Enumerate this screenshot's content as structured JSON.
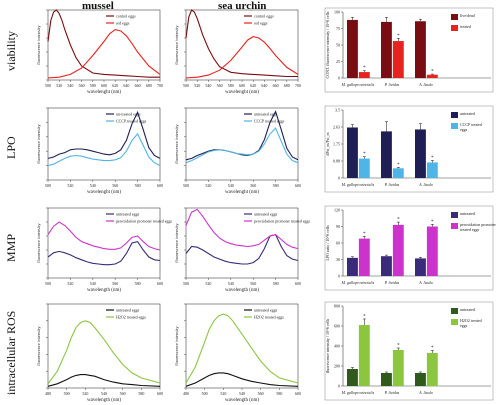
{
  "columns": [
    "mussel",
    "sea urchin"
  ],
  "rows": [
    "viability",
    "LPO",
    "MMP",
    "intracellular ROS"
  ],
  "colors": {
    "dark_red": "#7a0d12",
    "red": "#e8231e",
    "navy": "#1f1f55",
    "cyan": "#4fb4e6",
    "indigo": "#3a2a7a",
    "magenta": "#cc33cc",
    "dkgreen": "#2f5a1c",
    "ltgreen": "#8cc63f"
  },
  "chart_data": [
    {
      "type": "line",
      "ylabel": "fluorescence intensity",
      "xlabel": "wavelenght (nm)",
      "x_ticks": [
        "500",
        "520",
        "540",
        "560",
        "580",
        "600",
        "620",
        "640",
        "660",
        "680",
        "700"
      ],
      "series": [
        {
          "name": "control eggs",
          "color": "#7a0d12",
          "x": [
            500,
            505,
            510,
            515,
            520,
            525,
            530,
            540,
            550,
            560,
            580,
            600,
            620,
            640,
            660,
            680,
            700
          ],
          "y": [
            0.55,
            0.85,
            0.97,
            1.0,
            0.95,
            0.85,
            0.72,
            0.5,
            0.32,
            0.2,
            0.1,
            0.08,
            0.07,
            0.06,
            0.05,
            0.04,
            0.04
          ]
        },
        {
          "name": "red eggs",
          "color": "#e8231e",
          "x": [
            500,
            520,
            540,
            560,
            580,
            600,
            610,
            620,
            630,
            640,
            650,
            660,
            680,
            700
          ],
          "y": [
            0.03,
            0.04,
            0.08,
            0.17,
            0.35,
            0.55,
            0.66,
            0.72,
            0.7,
            0.63,
            0.52,
            0.4,
            0.2,
            0.08
          ]
        }
      ]
    },
    {
      "type": "line",
      "ylabel": "fluorescence intensity",
      "xlabel": "wavelenght (nm)",
      "x_ticks": [
        "500",
        "520",
        "540",
        "560",
        "580",
        "600",
        "620",
        "640",
        "660",
        "680",
        "700"
      ],
      "series": [
        {
          "name": "control eggs",
          "color": "#7a0d12",
          "x": [
            500,
            505,
            510,
            515,
            520,
            525,
            530,
            540,
            550,
            560,
            580,
            600,
            620,
            640,
            660,
            680,
            700
          ],
          "y": [
            0.6,
            0.9,
            1.0,
            0.97,
            0.88,
            0.76,
            0.64,
            0.45,
            0.3,
            0.19,
            0.11,
            0.09,
            0.08,
            0.07,
            0.06,
            0.05,
            0.05
          ]
        },
        {
          "name": "red eggs",
          "color": "#e8231e",
          "x": [
            500,
            520,
            540,
            560,
            580,
            600,
            610,
            620,
            630,
            640,
            650,
            660,
            680,
            700
          ],
          "y": [
            0.03,
            0.04,
            0.07,
            0.14,
            0.28,
            0.47,
            0.57,
            0.62,
            0.6,
            0.54,
            0.45,
            0.35,
            0.18,
            0.08
          ]
        }
      ]
    },
    {
      "type": "bar",
      "ylabel": "CONT. fluorescence intensity / 10^6 cells",
      "categories": [
        "M. galloprovincialis",
        "P. lividus",
        "A. lixula"
      ],
      "series": [
        {
          "name": "live/dead eggs",
          "color": "#7a0d12",
          "values": [
            88,
            85,
            86
          ],
          "errors": [
            4,
            7,
            3
          ]
        },
        {
          "name": "treated eggs",
          "color": "#e8231e",
          "values": [
            9,
            56,
            5
          ],
          "errors": [
            2,
            4,
            1
          ]
        }
      ],
      "ylim": [
        0,
        100
      ],
      "sig": [
        "*",
        "*",
        "*"
      ]
    },
    {
      "type": "line",
      "ylabel": "fluorescence intensity",
      "xlabel": "wavelenght (nm)",
      "x_ticks": [
        "500",
        "520",
        "540",
        "560",
        "580",
        "600"
      ],
      "series": [
        {
          "name": "un-treated eggs",
          "color": "#1f1f55",
          "x": [
            500,
            505,
            510,
            515,
            520,
            525,
            530,
            535,
            540,
            545,
            550,
            555,
            560,
            565,
            570,
            575,
            580,
            585,
            590,
            595,
            600
          ],
          "y": [
            0.3,
            0.32,
            0.36,
            0.38,
            0.42,
            0.43,
            0.43,
            0.42,
            0.4,
            0.38,
            0.36,
            0.35,
            0.37,
            0.42,
            0.55,
            0.78,
            0.94,
            0.7,
            0.45,
            0.34,
            0.3
          ]
        },
        {
          "name": "CCCP treated eggs",
          "color": "#4fb4e6",
          "x": [
            500,
            505,
            510,
            515,
            520,
            525,
            530,
            535,
            540,
            545,
            550,
            555,
            560,
            565,
            570,
            575,
            580,
            585,
            590,
            595,
            600
          ],
          "y": [
            0.2,
            0.22,
            0.26,
            0.3,
            0.33,
            0.34,
            0.33,
            0.31,
            0.29,
            0.28,
            0.27,
            0.27,
            0.28,
            0.31,
            0.4,
            0.55,
            0.64,
            0.48,
            0.32,
            0.24,
            0.2
          ]
        }
      ]
    },
    {
      "type": "line",
      "ylabel": "fluorescence intensity",
      "xlabel": "wavelenght (nm)",
      "x_ticks": [
        "500",
        "520",
        "540",
        "560",
        "580",
        "600"
      ],
      "series": [
        {
          "name": "untreated eggs",
          "color": "#1f1f55",
          "x": [
            500,
            505,
            510,
            515,
            520,
            525,
            530,
            535,
            540,
            545,
            550,
            555,
            560,
            565,
            570,
            575,
            580,
            585,
            590,
            595,
            600
          ],
          "y": [
            0.28,
            0.3,
            0.34,
            0.37,
            0.4,
            0.42,
            0.42,
            0.41,
            0.39,
            0.37,
            0.35,
            0.34,
            0.36,
            0.41,
            0.56,
            0.8,
            0.95,
            0.7,
            0.44,
            0.32,
            0.28
          ]
        },
        {
          "name": "CCCP treated eggs",
          "color": "#4fb4e6",
          "x": [
            500,
            505,
            510,
            515,
            520,
            525,
            530,
            535,
            540,
            545,
            550,
            555,
            560,
            565,
            570,
            575,
            580,
            585,
            590,
            595,
            600
          ],
          "y": [
            0.24,
            0.27,
            0.31,
            0.35,
            0.39,
            0.41,
            0.42,
            0.41,
            0.39,
            0.37,
            0.36,
            0.35,
            0.36,
            0.4,
            0.5,
            0.64,
            0.72,
            0.54,
            0.36,
            0.27,
            0.24
          ]
        }
      ]
    },
    {
      "type": "bar",
      "ylabel": "dPsi_m/Psi_m",
      "categories": [
        "M. galloprovincialis",
        "P. lividus",
        "A. lixula"
      ],
      "series": [
        {
          "name": "untreated eggs",
          "color": "#1f1f55",
          "values": [
            2.6,
            2.4,
            2.5
          ],
          "errors": [
            0.15,
            0.5,
            0.3
          ]
        },
        {
          "name": "CCCP treated eggs",
          "color": "#4fb4e6",
          "values": [
            1.0,
            0.5,
            0.8
          ],
          "errors": [
            0.1,
            0.05,
            0.1
          ]
        }
      ],
      "ylim": [
        0,
        3.5
      ],
      "sig": [
        "*",
        "*",
        "*"
      ]
    },
    {
      "type": "line",
      "ylabel": "fluorescence intensity",
      "xlabel": "wavelength (nm)",
      "x_ticks": [
        "500",
        "520",
        "540",
        "560",
        "580",
        "600"
      ],
      "series": [
        {
          "name": "untreated eggs",
          "color": "#3a2a7a",
          "x": [
            500,
            505,
            510,
            515,
            520,
            525,
            530,
            535,
            540,
            545,
            550,
            555,
            560,
            565,
            570,
            575,
            580,
            585,
            590,
            595,
            600
          ],
          "y": [
            0.3,
            0.36,
            0.38,
            0.36,
            0.33,
            0.29,
            0.26,
            0.23,
            0.21,
            0.2,
            0.19,
            0.19,
            0.2,
            0.24,
            0.35,
            0.5,
            0.52,
            0.4,
            0.3,
            0.26,
            0.25
          ]
        },
        {
          "name": "peroxidation promoter treated eggs",
          "color": "#cc33cc",
          "x": [
            500,
            505,
            510,
            515,
            520,
            525,
            530,
            535,
            540,
            545,
            550,
            555,
            560,
            565,
            570,
            575,
            580,
            585,
            590,
            595,
            600
          ],
          "y": [
            0.62,
            0.74,
            0.8,
            0.75,
            0.67,
            0.58,
            0.52,
            0.49,
            0.46,
            0.44,
            0.42,
            0.41,
            0.41,
            0.43,
            0.5,
            0.58,
            0.6,
            0.52,
            0.45,
            0.42,
            0.4
          ]
        }
      ]
    },
    {
      "type": "line",
      "ylabel": "fluorescence intensity",
      "xlabel": "wavelength (nm)",
      "x_ticks": [
        "500",
        "520",
        "540",
        "560",
        "580",
        "600"
      ],
      "series": [
        {
          "name": "untreated eggs",
          "color": "#3a2a7a",
          "x": [
            500,
            505,
            510,
            515,
            520,
            525,
            530,
            535,
            540,
            545,
            550,
            555,
            560,
            565,
            570,
            575,
            580,
            585,
            590,
            595,
            600
          ],
          "y": [
            0.35,
            0.45,
            0.44,
            0.4,
            0.35,
            0.3,
            0.27,
            0.24,
            0.22,
            0.21,
            0.2,
            0.2,
            0.22,
            0.28,
            0.42,
            0.6,
            0.62,
            0.45,
            0.32,
            0.27,
            0.25
          ]
        },
        {
          "name": "peroxidation promoter treated eggs",
          "color": "#cc33cc",
          "x": [
            500,
            505,
            510,
            515,
            520,
            525,
            530,
            535,
            540,
            545,
            550,
            555,
            560,
            565,
            570,
            575,
            580,
            585,
            590,
            595,
            600
          ],
          "y": [
            0.75,
            0.94,
            0.98,
            0.88,
            0.76,
            0.65,
            0.57,
            0.52,
            0.49,
            0.47,
            0.46,
            0.45,
            0.46,
            0.48,
            0.54,
            0.6,
            0.62,
            0.55,
            0.48,
            0.44,
            0.42
          ]
        }
      ]
    },
    {
      "type": "bar",
      "ylabel": "LPO ratio / 10^6 cells",
      "categories": [
        "M. galloprovincialis",
        "P. lividus",
        "A. lixula"
      ],
      "series": [
        {
          "name": "untreated eggs",
          "color": "#3a2a7a",
          "values": [
            33,
            36,
            32
          ],
          "errors": [
            2,
            2,
            2
          ]
        },
        {
          "name": "peroxidation promoter treated eggs",
          "color": "#cc33cc",
          "values": [
            68,
            93,
            90
          ],
          "errors": [
            4,
            5,
            4
          ]
        }
      ],
      "ylim": [
        0,
        120
      ],
      "sig": [
        "*",
        "*",
        "*"
      ]
    },
    {
      "type": "line",
      "ylabel": "fluorescence intensity",
      "xlabel": "wavelength (nm)",
      "x_ticks": [
        "480",
        "500",
        "520",
        "540",
        "560",
        "580",
        "600"
      ],
      "series": [
        {
          "name": "untreated eggs",
          "color": "#111111",
          "x": [
            480,
            490,
            500,
            505,
            510,
            515,
            520,
            525,
            530,
            540,
            550,
            560,
            570,
            580,
            600
          ],
          "y": [
            0.02,
            0.05,
            0.1,
            0.13,
            0.15,
            0.16,
            0.16,
            0.15,
            0.14,
            0.1,
            0.07,
            0.05,
            0.04,
            0.03,
            0.02
          ]
        },
        {
          "name": "H2O2 treated eggs",
          "color": "#8cc63f",
          "x": [
            480,
            490,
            500,
            505,
            510,
            515,
            520,
            525,
            530,
            540,
            550,
            560,
            570,
            580,
            600
          ],
          "y": [
            0.05,
            0.2,
            0.45,
            0.6,
            0.72,
            0.78,
            0.8,
            0.78,
            0.72,
            0.58,
            0.42,
            0.28,
            0.18,
            0.12,
            0.06
          ]
        }
      ]
    },
    {
      "type": "line",
      "ylabel": "fluorescence intensity",
      "xlabel": "wavelength (nm)",
      "x_ticks": [
        "480",
        "500",
        "520",
        "540",
        "560",
        "580",
        "600"
      ],
      "series": [
        {
          "name": "untreated eggs",
          "color": "#111111",
          "x": [
            480,
            490,
            500,
            505,
            510,
            515,
            520,
            525,
            530,
            540,
            550,
            560,
            570,
            580,
            600
          ],
          "y": [
            0.02,
            0.06,
            0.12,
            0.15,
            0.17,
            0.18,
            0.18,
            0.17,
            0.15,
            0.11,
            0.08,
            0.06,
            0.04,
            0.03,
            0.02
          ]
        },
        {
          "name": "H2O2 treated eggs",
          "color": "#8cc63f",
          "x": [
            480,
            490,
            500,
            505,
            510,
            515,
            520,
            525,
            530,
            540,
            550,
            560,
            570,
            580,
            600
          ],
          "y": [
            0.06,
            0.25,
            0.55,
            0.7,
            0.8,
            0.86,
            0.88,
            0.86,
            0.8,
            0.64,
            0.48,
            0.32,
            0.2,
            0.12,
            0.06
          ]
        }
      ]
    },
    {
      "type": "bar",
      "ylabel": "fluorescence intensity / 10^6 cells",
      "categories": [
        "M. galloprovincialis",
        "P. lividus",
        "A. lixula"
      ],
      "series": [
        {
          "name": "untreated eggs",
          "color": "#2f5a1c",
          "values": [
            170,
            130,
            130
          ],
          "errors": [
            15,
            10,
            10
          ]
        },
        {
          "name": "H2O2 treated eggs",
          "color": "#8cc63f",
          "values": [
            610,
            360,
            330
          ],
          "errors": [
            60,
            20,
            25
          ]
        }
      ],
      "ylim": [
        0,
        800
      ],
      "sig": [
        "*",
        "*",
        "*"
      ]
    }
  ]
}
